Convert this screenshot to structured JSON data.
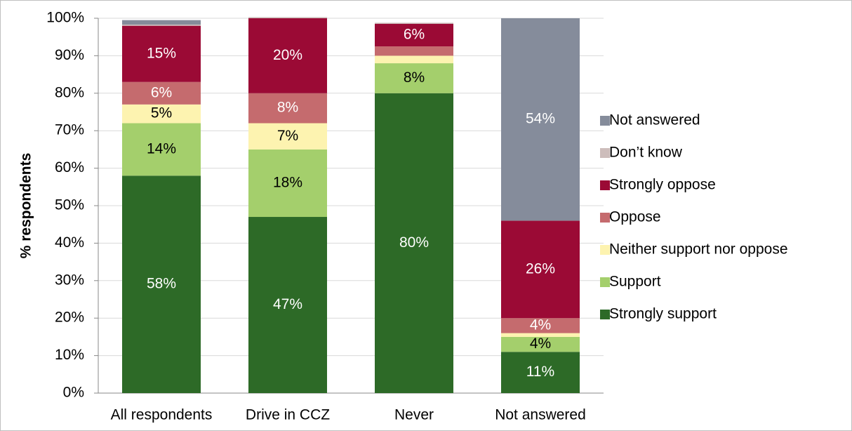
{
  "chart_data": {
    "type": "stacked_bar",
    "y_label": "% respondents",
    "categories": [
      "All respondents",
      "Drive in CCZ",
      "Never",
      "Not answered"
    ],
    "series": [
      {
        "name": "Strongly support",
        "color": "#2d6a27",
        "label_color": "#ffffff",
        "values": [
          58,
          47,
          80,
          11
        ],
        "value_labels": [
          "58%",
          "47%",
          "80%",
          "11%"
        ]
      },
      {
        "name": "Support",
        "color": "#a4cf6c",
        "label_color": "#000000",
        "values": [
          14,
          18,
          8,
          4
        ],
        "value_labels": [
          "14%",
          "18%",
          "8%",
          "4%"
        ]
      },
      {
        "name": "Neither support nor oppose",
        "color": "#fdf3b0",
        "label_color": "#000000",
        "values": [
          5,
          7,
          2,
          1
        ],
        "value_labels": [
          "5%",
          "7%",
          null,
          null
        ]
      },
      {
        "name": "Oppose",
        "color": "#c56b6e",
        "label_color": "#ffffff",
        "values": [
          6,
          8,
          2.5,
          4
        ],
        "value_labels": [
          "6%",
          "8%",
          null,
          "4%"
        ]
      },
      {
        "name": "Strongly oppose",
        "color": "#9b0a35",
        "label_color": "#ffffff",
        "values": [
          15,
          20,
          6,
          26
        ],
        "value_labels": [
          "15%",
          "20%",
          "6%",
          "26%"
        ]
      },
      {
        "name": "Don’t know",
        "color": "#cdbdbb",
        "label_color": "#000000",
        "values": [
          0.3,
          0.3,
          0.3,
          0
        ],
        "value_labels": [
          null,
          null,
          null,
          null
        ]
      },
      {
        "name": "Not answered",
        "color": "#858c9b",
        "label_color": "#ffffff",
        "values": [
          1.2,
          0,
          0,
          54
        ],
        "value_labels": [
          null,
          null,
          null,
          "54%"
        ]
      }
    ],
    "ylim": [
      0,
      100
    ],
    "yticks": [
      {
        "value": 0,
        "label": "0%"
      },
      {
        "value": 10,
        "label": "10%"
      },
      {
        "value": 20,
        "label": "20%"
      },
      {
        "value": 30,
        "label": "30%"
      },
      {
        "value": 40,
        "label": "40%"
      },
      {
        "value": 50,
        "label": "50%"
      },
      {
        "value": 60,
        "label": "60%"
      },
      {
        "value": 70,
        "label": "70%"
      },
      {
        "value": 80,
        "label": "80%"
      },
      {
        "value": 90,
        "label": "90%"
      },
      {
        "value": 100,
        "label": "100%"
      }
    ],
    "grid": true,
    "legend": "right"
  }
}
